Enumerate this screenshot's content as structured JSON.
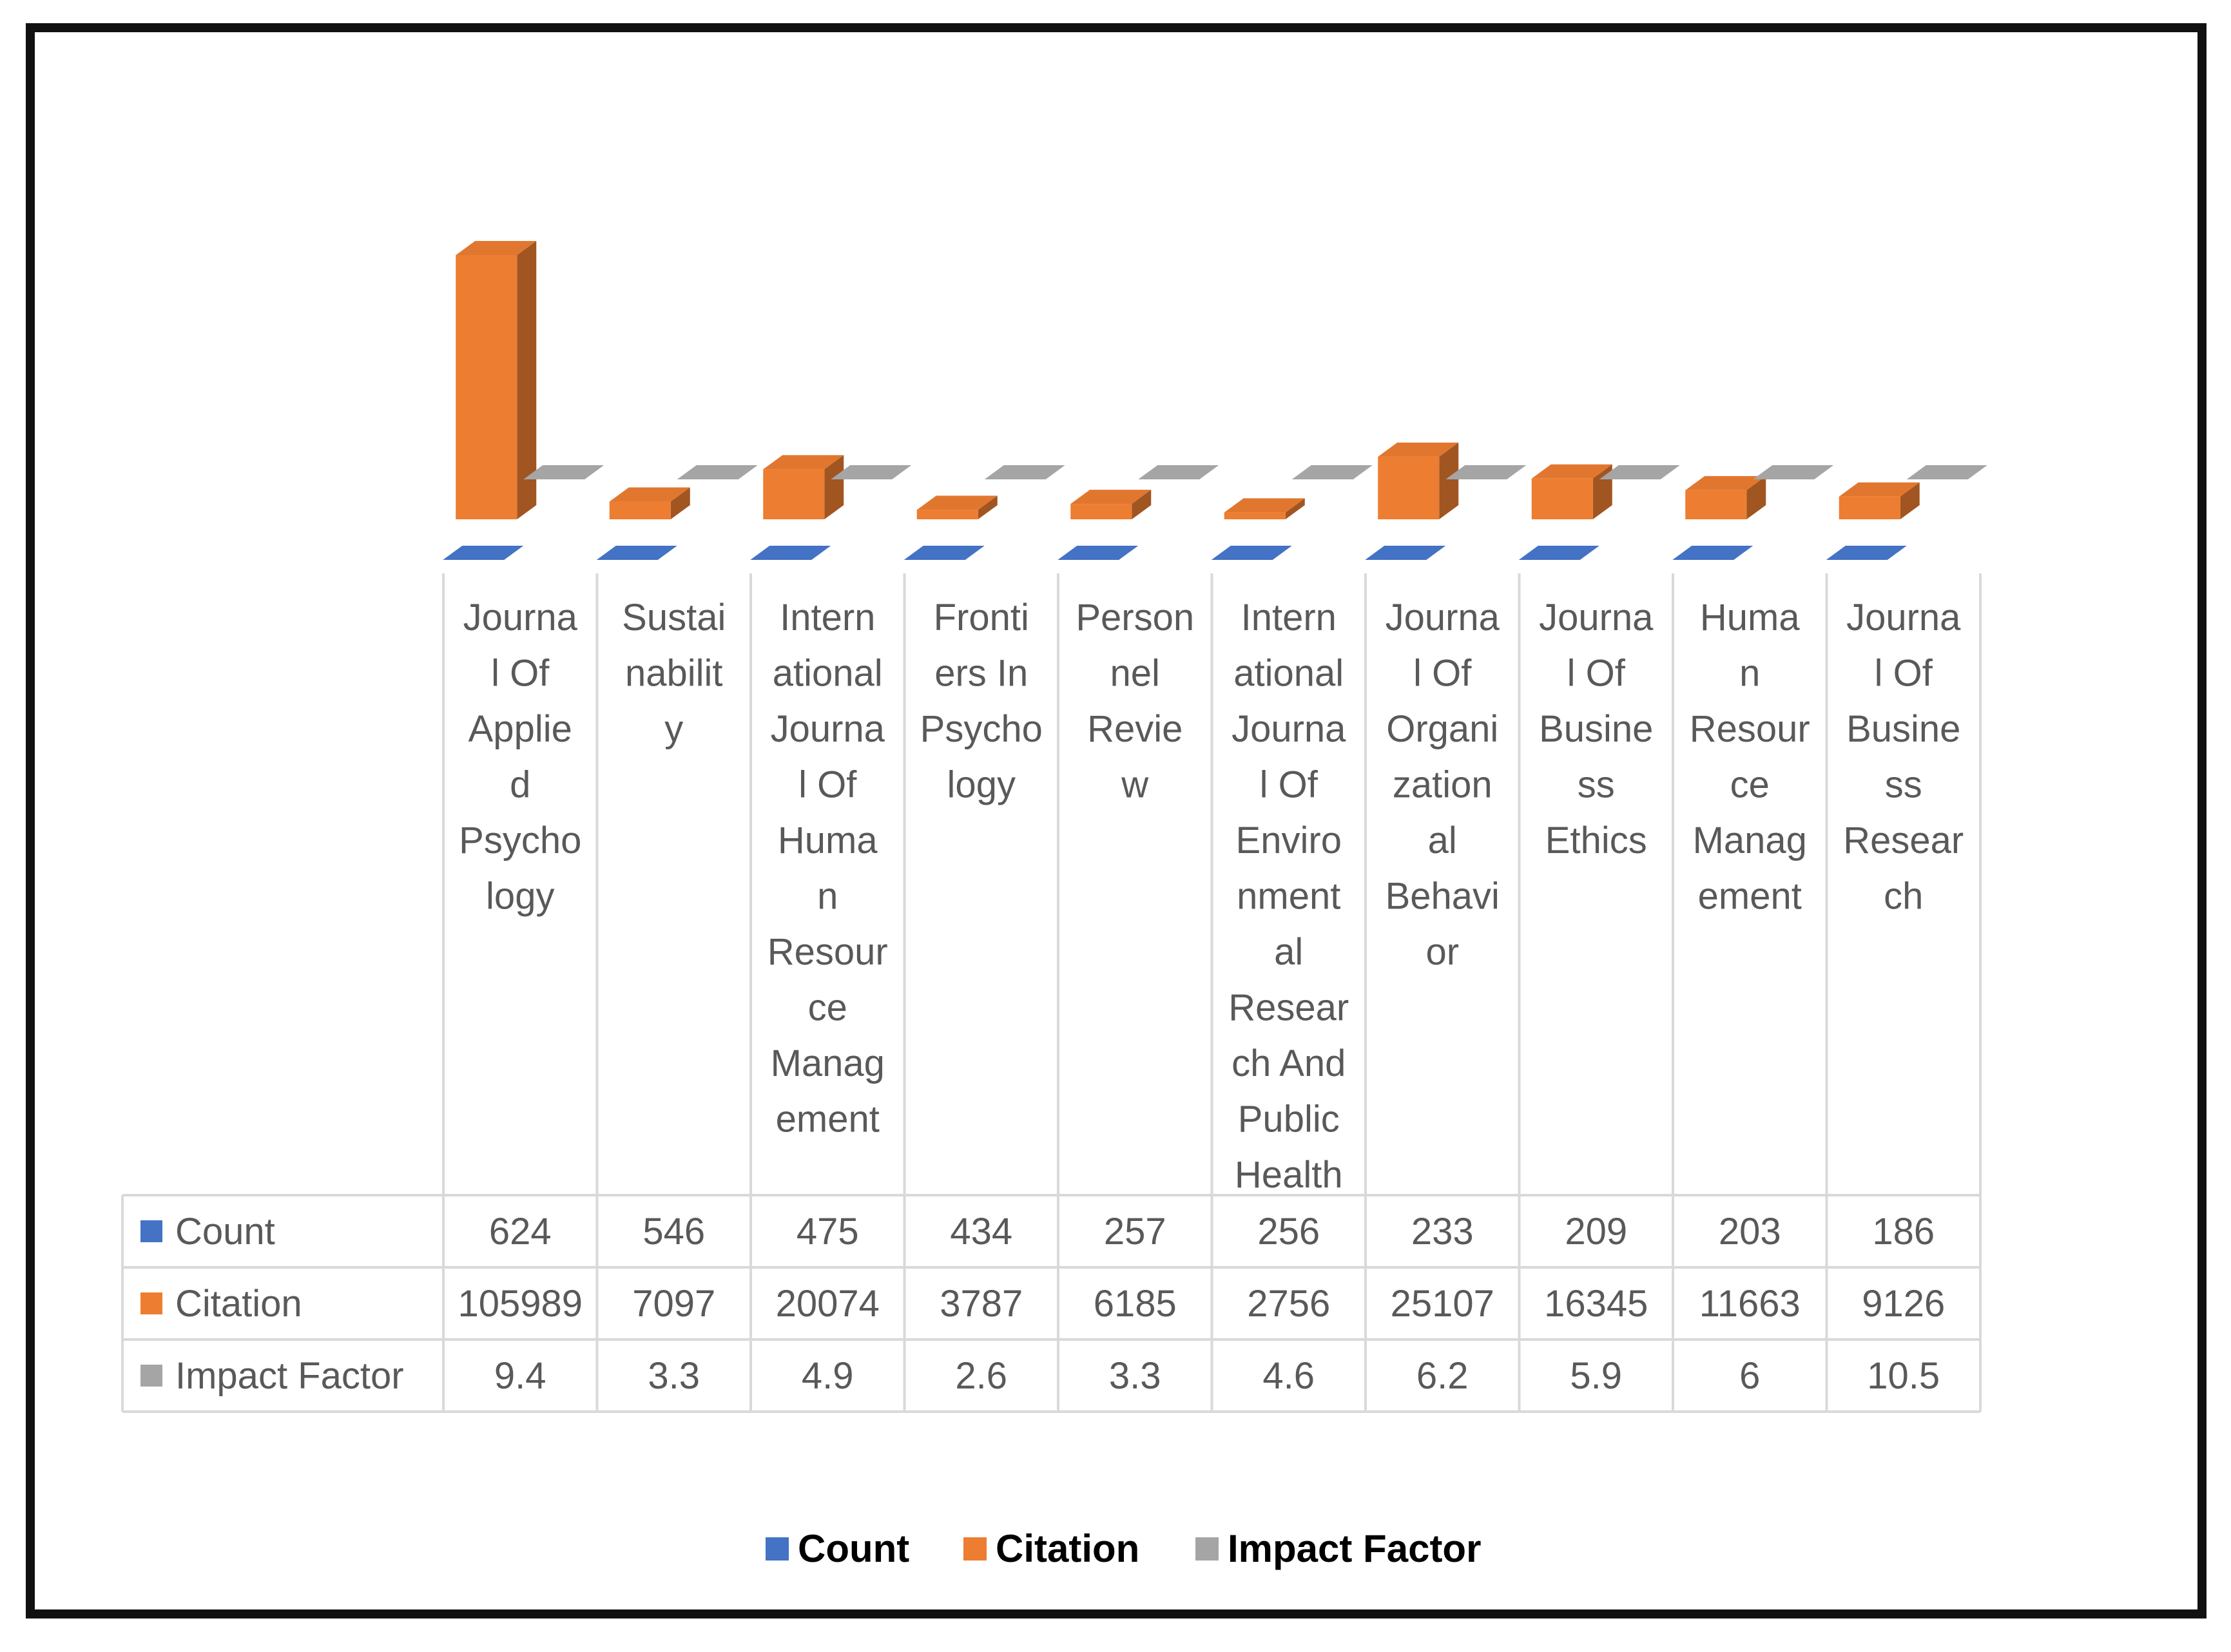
{
  "chart_data": {
    "type": "bar",
    "three_d": true,
    "categories": [
      "Journal Of Applied Psychology",
      "Sustainability",
      "International Journal Of Human Resource Management",
      "Frontiers In Psychology",
      "Personnel Review",
      "International Journal Of Environmental Research And Public Health",
      "Journal Of Organizational Behavior",
      "Journal Of Business Ethics",
      "Human Resource Management",
      "Journal Of Business Research"
    ],
    "category_lines": [
      [
        "Journa",
        "l Of",
        "Applie",
        "d",
        "Psycho",
        "logy"
      ],
      [
        "Sustai",
        "nabilit",
        "y"
      ],
      [
        "Intern",
        "ational",
        "Journa",
        "l Of",
        "Huma",
        "n",
        "Resour",
        "ce",
        "Manag",
        "ement"
      ],
      [
        "Fronti",
        "ers In",
        "Psycho",
        "logy"
      ],
      [
        "Person",
        "nel",
        "Revie",
        "w"
      ],
      [
        "Intern",
        "ational",
        "Journa",
        "l Of",
        "Enviro",
        "nment",
        "al",
        "Resear",
        "ch And",
        "Public",
        "Health"
      ],
      [
        "Journa",
        "l Of",
        "Organi",
        "zation",
        "al",
        "Behavi",
        "or"
      ],
      [
        "Journa",
        "l Of",
        "Busine",
        "ss",
        "Ethics"
      ],
      [
        "Huma",
        "n",
        "Resour",
        "ce",
        "Manag",
        "ement"
      ],
      [
        "Journa",
        "l Of",
        "Busine",
        "ss",
        "Resear",
        "ch"
      ]
    ],
    "series": [
      {
        "name": "Count",
        "color": "#4472C4",
        "values": [
          624,
          546,
          475,
          434,
          257,
          256,
          233,
          209,
          203,
          186
        ],
        "labels": [
          "624",
          "546",
          "475",
          "434",
          "257",
          "256",
          "233",
          "209",
          "203",
          "186"
        ]
      },
      {
        "name": "Citation",
        "color": "#ED7D31",
        "values": [
          105989,
          7097,
          20074,
          3787,
          6185,
          2756,
          25107,
          16345,
          11663,
          9126
        ],
        "labels": [
          "105989",
          "7097",
          "20074",
          "3787",
          "6185",
          "2756",
          "25107",
          "16345",
          "11663",
          "9126"
        ]
      },
      {
        "name": "Impact Factor",
        "color": "#A5A5A5",
        "values": [
          9.4,
          3.3,
          4.9,
          2.6,
          3.3,
          4.6,
          6.2,
          5.9,
          6,
          10.5
        ],
        "labels": [
          "9.4",
          "3.3",
          "4.9",
          "2.6",
          "3.3",
          "4.6",
          "6.2",
          "5.9",
          "6",
          "10.5"
        ]
      }
    ],
    "legend": {
      "position": "bottom",
      "items": [
        "Count",
        "Citation",
        "Impact Factor"
      ]
    },
    "data_table": true,
    "grid": false
  }
}
